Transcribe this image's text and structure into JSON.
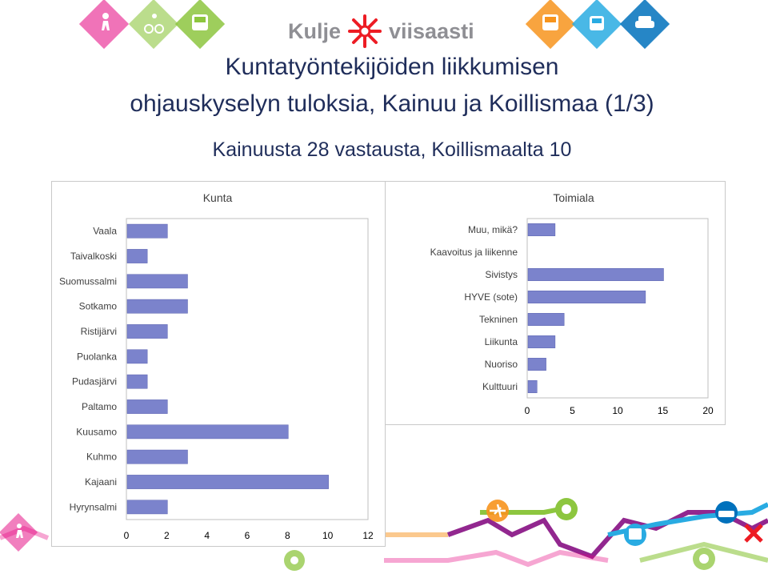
{
  "logo": {
    "left_text": "Kulje",
    "right_text": "viisaasti"
  },
  "title_lines": [
    "Kuntatyöntekijöiden liikkumisen",
    "ohjauskyselyn tuloksia, Kainuu ja Koillismaa (1/3)"
  ],
  "subtitle": "Kainuusta 28 vastausta, Koillismaalta 10",
  "chart_data": [
    {
      "type": "bar",
      "orientation": "horizontal",
      "title": "Kunta",
      "categories": [
        "Vaala",
        "Taivalkoski",
        "Suomussalmi",
        "Sotkamo",
        "Ristijärvi",
        "Puolanka",
        "Pudasjärvi",
        "Paltamo",
        "Kuusamo",
        "Kuhmo",
        "Kajaani",
        "Hyrynsalmi"
      ],
      "values": [
        2,
        1,
        3,
        3,
        2,
        1,
        1,
        2,
        8,
        3,
        10,
        2
      ],
      "xlim": [
        0,
        12
      ],
      "xticks": [
        0,
        2,
        4,
        6,
        8,
        10,
        12
      ],
      "bar_color": "#7b83cc",
      "grid": false
    },
    {
      "type": "bar",
      "orientation": "horizontal",
      "title": "Toimiala",
      "categories": [
        "Muu, mikä?",
        "Kaavoitus ja liikenne",
        "Sivistys",
        "HYVE (sote)",
        "Tekninen",
        "Liikunta",
        "Nuoriso",
        "Kulttuuri"
      ],
      "values": [
        3,
        0,
        15,
        13,
        4,
        3,
        2,
        1
      ],
      "xlim": [
        0,
        20
      ],
      "xticks": [
        0,
        5,
        10,
        15,
        20
      ],
      "bar_color": "#7b83cc",
      "grid": false
    }
  ],
  "colors": {
    "title": "#1f2d5a",
    "bar": "#7b83cc",
    "icon_pink": "#e4007d",
    "icon_green": "#8dc63f",
    "icon_orange": "#f7941d",
    "icon_blue": "#0071bc",
    "icon_lightblue": "#29abe2",
    "icon_purple": "#92278f",
    "icon_red": "#ed1c24"
  },
  "icons": {
    "top_left": [
      "pedestrian-icon",
      "cyclist-icon",
      "bus-icon"
    ],
    "top_right": [
      "train-icon",
      "tram-icon",
      "car-icon"
    ],
    "bottom_left": [
      "pedestrian-icon"
    ],
    "bottom_middle": [
      "plane-icon",
      "sun-icon",
      "sun-icon"
    ],
    "bottom_right": [
      "tram-icon",
      "car-icon"
    ]
  }
}
